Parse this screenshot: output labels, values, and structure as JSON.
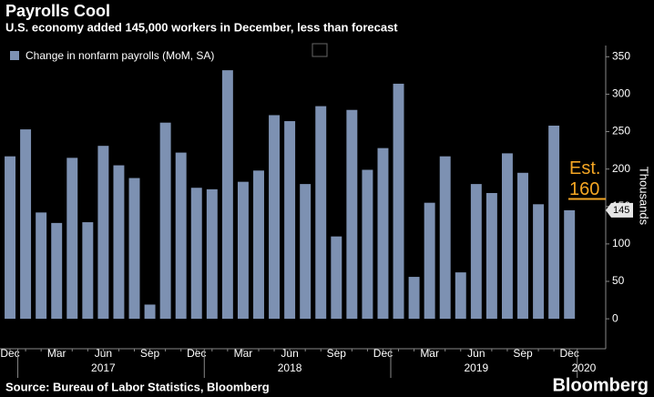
{
  "chart_data": {
    "type": "bar",
    "title": "Payrolls Cool",
    "subtitle": "U.S. economy added 145,000 workers in December, less than forecast",
    "y_label": "Thousands",
    "source": "Source: Bureau of Labor Statistics, Bloomberg",
    "brand": "Bloomberg",
    "categories": [
      "Dec",
      null,
      null,
      "Mar",
      null,
      null,
      "Jun",
      null,
      null,
      "Sep",
      null,
      null,
      "Dec",
      null,
      null,
      "Mar",
      null,
      null,
      "Jun",
      null,
      null,
      "Sep",
      null,
      null,
      "Dec",
      null,
      null,
      "Mar",
      null,
      null,
      "Jun",
      null,
      null,
      "Sep",
      null,
      null,
      "Dec"
    ],
    "year_labels": [
      "2017",
      "2018",
      "2019",
      "2020"
    ],
    "series": [
      {
        "name": "Change in nonfarm payrolls (MoM, SA)",
        "color": "#7d91b2",
        "values": [
          217,
          253,
          142,
          128,
          215,
          129,
          231,
          205,
          188,
          19,
          262,
          222,
          175,
          173,
          332,
          183,
          198,
          272,
          264,
          180,
          284,
          110,
          279,
          199,
          228,
          314,
          56,
          155,
          217,
          62,
          180,
          168,
          221,
          195,
          153,
          258,
          145
        ]
      }
    ],
    "annotation": {
      "text": "Est.",
      "value": 160,
      "color": "#f5a623"
    },
    "ylim": [
      -40,
      365
    ],
    "yticks": [
      0,
      50,
      100,
      150,
      200,
      250,
      300,
      350
    ],
    "grid": false
  }
}
